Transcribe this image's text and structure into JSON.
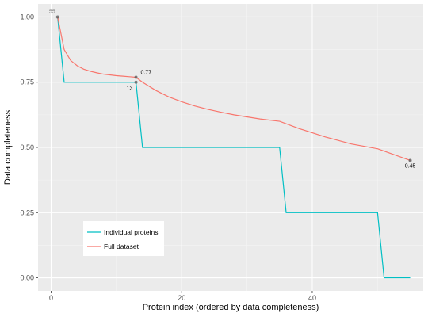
{
  "chart_data": {
    "type": "line",
    "title": "",
    "xlabel": "Protein index (ordered by data completeness)",
    "ylabel": "Data completeness",
    "xlim": [
      -2,
      57
    ],
    "ylim": [
      -0.05,
      1.05
    ],
    "x_ticks": [
      0,
      20,
      40
    ],
    "y_ticks": [
      0.0,
      0.25,
      0.5,
      0.75,
      1.0
    ],
    "x_tick_labels": [
      "0",
      "20",
      "40"
    ],
    "y_tick_labels": [
      "0.00",
      "0.25",
      "0.50",
      "0.75",
      "1.00"
    ],
    "grid": true,
    "legend_position": "bottom-left",
    "series": [
      {
        "name": "Individual proteins",
        "color": "#00BFC4",
        "step": true,
        "points": [
          [
            1,
            1.0
          ],
          [
            2,
            0.75
          ],
          [
            13,
            0.75
          ],
          [
            14,
            0.5
          ],
          [
            35,
            0.5
          ],
          [
            36,
            0.25
          ],
          [
            50,
            0.25
          ],
          [
            51,
            0.0
          ],
          [
            55,
            0.0
          ]
        ]
      },
      {
        "name": "Full dataset",
        "color": "#F8766D",
        "step": false,
        "points": [
          [
            1,
            1.0
          ],
          [
            2,
            0.875
          ],
          [
            3,
            0.833
          ],
          [
            4,
            0.813
          ],
          [
            5,
            0.8
          ],
          [
            6,
            0.792
          ],
          [
            7,
            0.786
          ],
          [
            8,
            0.781
          ],
          [
            9,
            0.778
          ],
          [
            10,
            0.775
          ],
          [
            11,
            0.773
          ],
          [
            12,
            0.771
          ],
          [
            13,
            0.769
          ],
          [
            14,
            0.75
          ],
          [
            16,
            0.719
          ],
          [
            18,
            0.694
          ],
          [
            20,
            0.675
          ],
          [
            22,
            0.659
          ],
          [
            24,
            0.646
          ],
          [
            26,
            0.635
          ],
          [
            28,
            0.625
          ],
          [
            30,
            0.617
          ],
          [
            32,
            0.609
          ],
          [
            35,
            0.6
          ],
          [
            38,
            0.572
          ],
          [
            42,
            0.54
          ],
          [
            46,
            0.513
          ],
          [
            50,
            0.495
          ],
          [
            55,
            0.45
          ]
        ]
      }
    ],
    "highlight_points": [
      {
        "x": 1,
        "y": 1.0,
        "label": "55",
        "label_pos": "top-left"
      },
      {
        "x": 13,
        "y": 0.769,
        "label": "0.77",
        "label_pos": "upper-right"
      },
      {
        "x": 13,
        "y": 0.75,
        "label": "13",
        "label_pos": "lower-left"
      },
      {
        "x": 55,
        "y": 0.45,
        "label": "0.45",
        "label_pos": "below"
      }
    ]
  }
}
